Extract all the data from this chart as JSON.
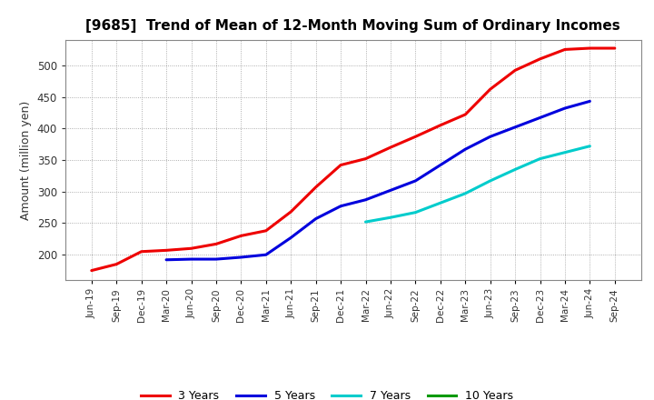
{
  "title": "[9685]  Trend of Mean of 12-Month Moving Sum of Ordinary Incomes",
  "ylabel": "Amount (million yen)",
  "background_color": "#ffffff",
  "plot_bg_color": "#ffffff",
  "grid_color": "#999999",
  "x_labels": [
    "Jun-19",
    "Sep-19",
    "Dec-19",
    "Mar-20",
    "Jun-20",
    "Sep-20",
    "Dec-20",
    "Mar-21",
    "Jun-21",
    "Sep-21",
    "Dec-21",
    "Mar-22",
    "Jun-22",
    "Sep-22",
    "Dec-22",
    "Mar-23",
    "Jun-23",
    "Sep-23",
    "Dec-23",
    "Mar-24",
    "Jun-24",
    "Sep-24"
  ],
  "ylim": [
    160,
    540
  ],
  "yticks": [
    200,
    250,
    300,
    350,
    400,
    450,
    500
  ],
  "series_order": [
    "3 Years",
    "5 Years",
    "7 Years",
    "10 Years"
  ],
  "series": {
    "3 Years": {
      "color": "#ee0000",
      "values": [
        175,
        185,
        205,
        207,
        210,
        217,
        230,
        238,
        268,
        307,
        342,
        352,
        370,
        387,
        405,
        422,
        462,
        492,
        510,
        525,
        527,
        527
      ]
    },
    "5 Years": {
      "color": "#0000dd",
      "values": [
        null,
        null,
        null,
        192,
        193,
        193,
        196,
        200,
        227,
        257,
        277,
        287,
        302,
        317,
        342,
        367,
        387,
        402,
        417,
        432,
        443,
        null
      ]
    },
    "7 Years": {
      "color": "#00cccc",
      "values": [
        null,
        null,
        null,
        null,
        null,
        null,
        null,
        null,
        null,
        null,
        null,
        252,
        259,
        267,
        282,
        297,
        317,
        335,
        352,
        362,
        372,
        null
      ]
    },
    "10 Years": {
      "color": "#009900",
      "values": [
        null,
        null,
        null,
        null,
        null,
        null,
        null,
        null,
        null,
        null,
        null,
        null,
        null,
        null,
        null,
        null,
        null,
        null,
        null,
        null,
        null,
        null
      ]
    }
  }
}
